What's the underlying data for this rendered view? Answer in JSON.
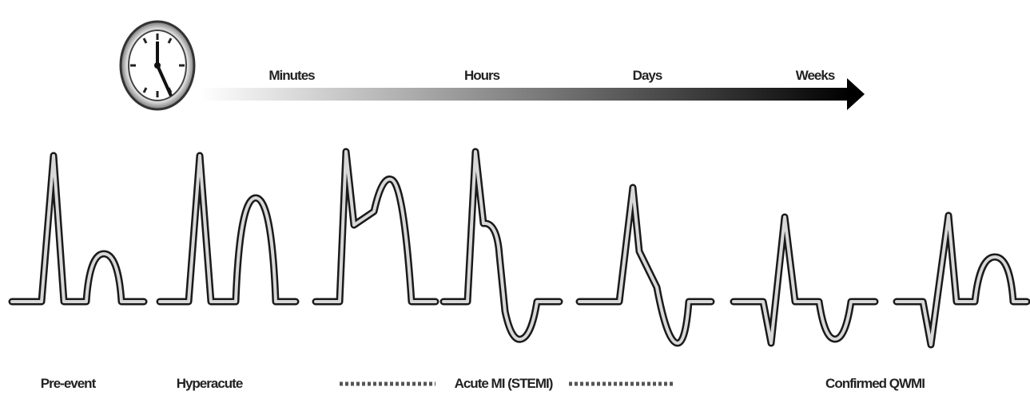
{
  "timeline": {
    "labels": [
      "Minutes",
      "Hours",
      "Days",
      "Weeks"
    ]
  },
  "stages": [
    "Pre-event",
    "Hyperacute",
    "Acute MI (STEMI)",
    "Confirmed QWMI"
  ]
}
